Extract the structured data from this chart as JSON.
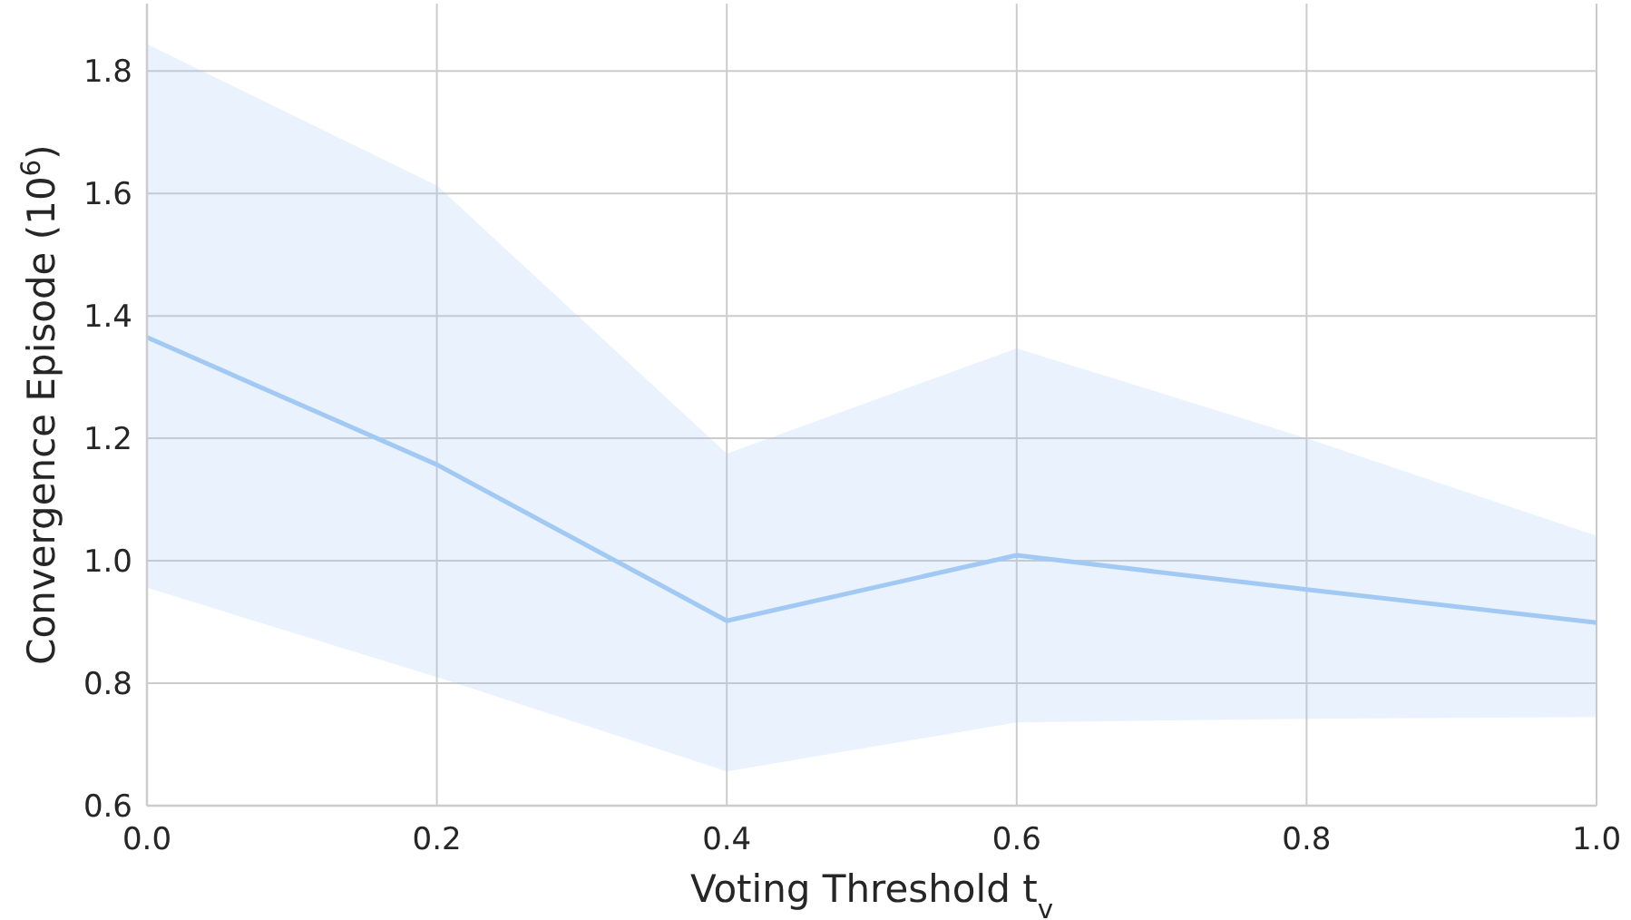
{
  "chart_data": {
    "type": "line",
    "xlabel": "Voting Threshold t$_{v}$",
    "ylabel": "Convergence Episode (10$^{6}$)",
    "x": [
      0,
      0.2,
      0.4,
      0.6,
      0.8,
      1.0
    ],
    "series": [
      {
        "color": "#a1c9f4",
        "values": [
          1.365,
          1.157,
          0.902,
          1.009,
          0.953,
          0.899
        ],
        "lower": [
          0.956,
          0.81,
          0.656,
          0.736,
          0.742,
          0.745
        ],
        "upper": [
          1.844,
          1.613,
          1.175,
          1.347,
          1.2,
          1.041
        ]
      }
    ],
    "xlim": [
      0,
      1.0
    ],
    "xticks": [
      {
        "value": 0,
        "label": "0.0"
      },
      0.2,
      0.4,
      0.6,
      0.8,
      {
        "value": 1,
        "label": "1.0"
      }
    ],
    "ylim": [
      0.6,
      1.91
    ],
    "yticks": [
      0.6,
      0.8,
      {
        "value": 1,
        "label": "1.0"
      },
      1.2,
      1.4,
      1.6,
      1.8
    ],
    "grid": true,
    "line_style": "solid"
  }
}
